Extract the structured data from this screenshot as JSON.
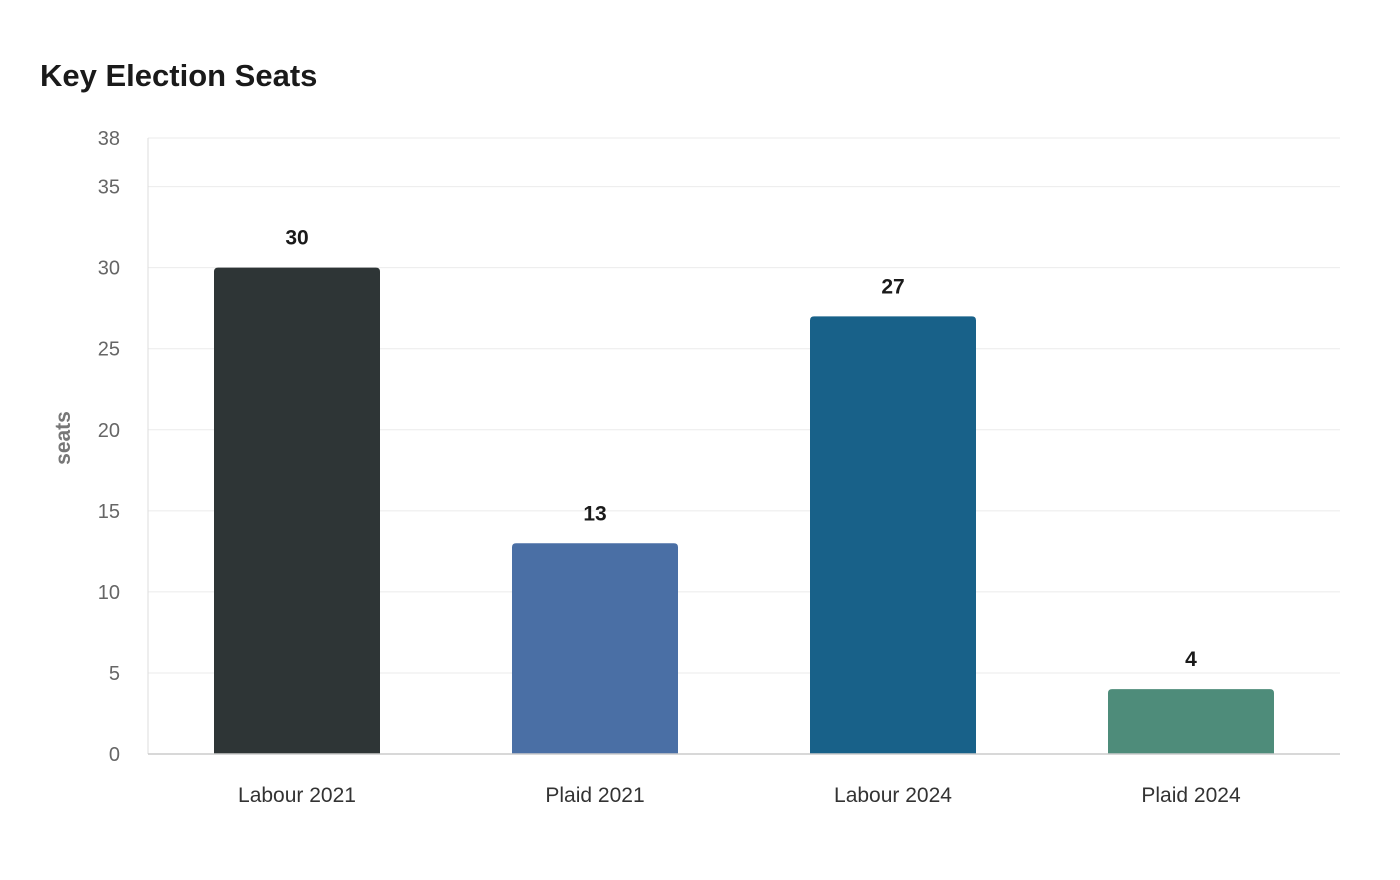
{
  "chart_data": {
    "type": "bar",
    "title": "Key Election Seats",
    "xlabel": "",
    "ylabel": "seats",
    "categories": [
      "Labour 2021",
      "Plaid 2021",
      "Labour 2024",
      "Plaid 2024"
    ],
    "values": [
      30,
      13,
      27,
      4
    ],
    "colors": [
      "#2e3536",
      "#4a6fa5",
      "#186189",
      "#4e8c7a"
    ],
    "ylim": [
      0,
      38
    ],
    "yticks": [
      0,
      5,
      10,
      15,
      20,
      25,
      30,
      35,
      38
    ],
    "grid": true,
    "data_labels": true
  }
}
